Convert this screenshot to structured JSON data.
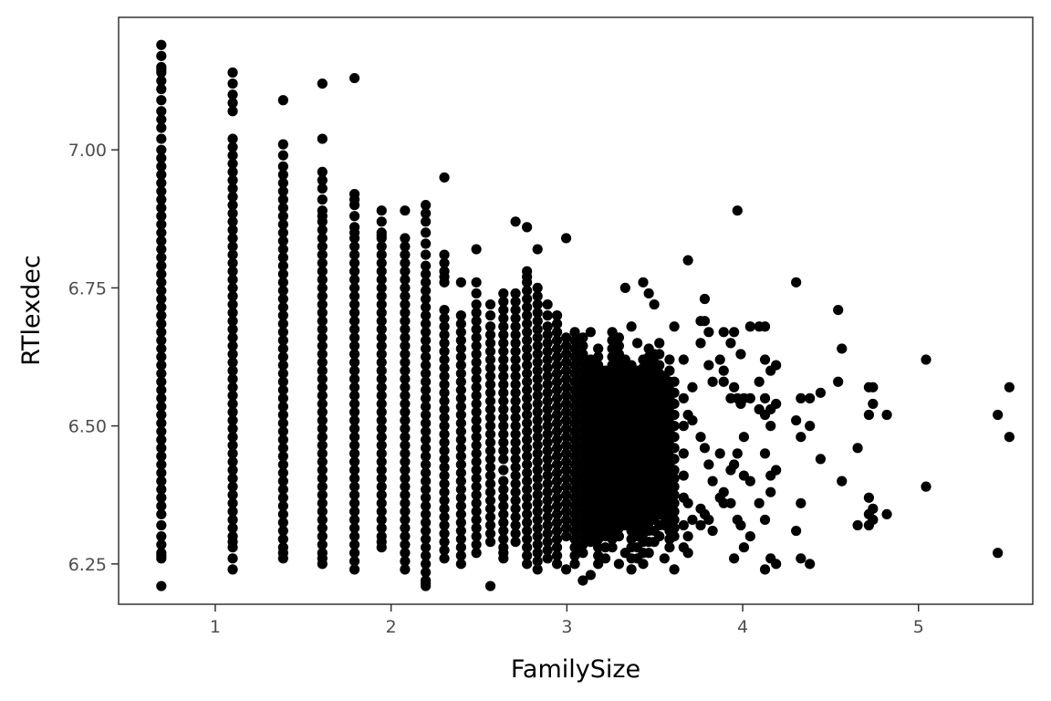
{
  "chart_data": {
    "type": "scatter",
    "title": "",
    "xlabel": "FamilySize",
    "ylabel": "RTlexdec",
    "xlim": [
      0.45,
      5.65
    ],
    "ylim": [
      6.177,
      7.24
    ],
    "x_ticks": [
      1,
      2,
      3,
      4,
      5
    ],
    "x_tick_labels": [
      "1",
      "2",
      "3",
      "4",
      "5"
    ],
    "y_ticks": [
      6.25,
      6.5,
      6.75,
      7.0
    ],
    "y_tick_labels": [
      "6.25",
      "6.50",
      "6.75",
      "7.00"
    ],
    "grid": false,
    "legend": "none",
    "point_color": "#000000",
    "frame_color": "#333333",
    "columns": [
      {
        "x": 0.693,
        "y": [
          6.21,
          6.26,
          6.27,
          6.3,
          6.34,
          6.37,
          6.4,
          6.43,
          6.46,
          6.49,
          6.52,
          6.55,
          6.58,
          6.61,
          6.64,
          6.67,
          6.7,
          6.73,
          6.76,
          6.79,
          6.82,
          6.85,
          6.88,
          6.91,
          6.94,
          6.97,
          7.0,
          7.04,
          7.07,
          7.11,
          7.14,
          7.15,
          7.19
        ]
      },
      {
        "x": 1.099,
        "y": [
          6.24,
          6.28,
          6.3,
          6.33,
          6.36,
          6.39,
          6.42,
          6.45,
          6.48,
          6.51,
          6.54,
          6.57,
          6.6,
          6.63,
          6.66,
          6.69,
          6.72,
          6.75,
          6.78,
          6.81,
          6.84,
          6.87,
          6.9,
          6.93,
          6.96,
          6.99,
          7.02,
          7.07,
          7.1,
          7.14
        ]
      },
      {
        "x": 1.386,
        "y": [
          6.26,
          6.28,
          6.31,
          6.34,
          6.37,
          6.4,
          6.43,
          6.46,
          6.49,
          6.52,
          6.55,
          6.58,
          6.61,
          6.64,
          6.67,
          6.7,
          6.73,
          6.76,
          6.79,
          6.82,
          6.85,
          6.88,
          6.91,
          6.94,
          6.97,
          7.01,
          7.09
        ]
      },
      {
        "x": 1.609,
        "y": [
          6.25,
          6.27,
          6.3,
          6.33,
          6.36,
          6.39,
          6.42,
          6.45,
          6.48,
          6.51,
          6.54,
          6.57,
          6.6,
          6.63,
          6.66,
          6.69,
          6.72,
          6.75,
          6.78,
          6.81,
          6.84,
          6.87,
          6.89,
          6.93,
          6.96,
          7.02,
          7.12
        ]
      },
      {
        "x": 1.792,
        "y": [
          6.24,
          6.27,
          6.3,
          6.33,
          6.36,
          6.39,
          6.42,
          6.45,
          6.48,
          6.51,
          6.54,
          6.57,
          6.6,
          6.63,
          6.66,
          6.69,
          6.72,
          6.75,
          6.78,
          6.81,
          6.84,
          6.86,
          6.9,
          6.92,
          7.13
        ]
      },
      {
        "x": 1.946,
        "y": [
          6.28,
          6.3,
          6.33,
          6.36,
          6.39,
          6.42,
          6.45,
          6.48,
          6.51,
          6.54,
          6.57,
          6.6,
          6.63,
          6.66,
          6.69,
          6.72,
          6.75,
          6.78,
          6.81,
          6.84,
          6.85,
          6.89
        ]
      },
      {
        "x": 2.079,
        "y": [
          6.24,
          6.27,
          6.3,
          6.33,
          6.36,
          6.39,
          6.42,
          6.45,
          6.48,
          6.51,
          6.54,
          6.57,
          6.6,
          6.63,
          6.66,
          6.69,
          6.72,
          6.75,
          6.78,
          6.81,
          6.84,
          6.89
        ]
      },
      {
        "x": 2.197,
        "y": [
          6.21,
          6.22,
          6.25,
          6.28,
          6.31,
          6.34,
          6.37,
          6.4,
          6.43,
          6.46,
          6.49,
          6.52,
          6.55,
          6.58,
          6.61,
          6.64,
          6.67,
          6.7,
          6.73,
          6.76,
          6.79,
          6.83,
          6.87,
          6.9
        ]
      },
      {
        "x": 2.303,
        "y": [
          6.26,
          6.29,
          6.32,
          6.35,
          6.38,
          6.41,
          6.44,
          6.47,
          6.5,
          6.53,
          6.56,
          6.59,
          6.62,
          6.65,
          6.68,
          6.71,
          6.76,
          6.78,
          6.81,
          6.95
        ]
      },
      {
        "x": 2.398,
        "y": [
          6.25,
          6.28,
          6.31,
          6.34,
          6.37,
          6.4,
          6.43,
          6.46,
          6.49,
          6.52,
          6.55,
          6.58,
          6.61,
          6.64,
          6.67,
          6.7,
          6.76
        ]
      },
      {
        "x": 2.485,
        "y": [
          6.27,
          6.3,
          6.33,
          6.36,
          6.39,
          6.42,
          6.45,
          6.48,
          6.51,
          6.54,
          6.57,
          6.6,
          6.63,
          6.66,
          6.69,
          6.72,
          6.76,
          6.82
        ]
      },
      {
        "x": 2.565,
        "y": [
          6.21,
          6.29,
          6.32,
          6.35,
          6.38,
          6.41,
          6.44,
          6.47,
          6.5,
          6.53,
          6.56,
          6.59,
          6.62,
          6.65,
          6.68,
          6.72
        ]
      },
      {
        "x": 2.639,
        "y": [
          6.26,
          6.28,
          6.31,
          6.34,
          6.37,
          6.4,
          6.44,
          6.47,
          6.5,
          6.53,
          6.56,
          6.59,
          6.62,
          6.65,
          6.68,
          6.71,
          6.74
        ]
      },
      {
        "x": 2.708,
        "y": [
          6.29,
          6.32,
          6.35,
          6.38,
          6.41,
          6.44,
          6.47,
          6.5,
          6.53,
          6.56,
          6.59,
          6.62,
          6.65,
          6.68,
          6.71,
          6.74,
          6.87
        ]
      },
      {
        "x": 2.773,
        "y": [
          6.25,
          6.28,
          6.31,
          6.34,
          6.37,
          6.4,
          6.43,
          6.46,
          6.49,
          6.52,
          6.55,
          6.58,
          6.61,
          6.64,
          6.67,
          6.7,
          6.73,
          6.76,
          6.78,
          6.86
        ]
      },
      {
        "x": 2.833,
        "y": [
          6.24,
          6.27,
          6.3,
          6.33,
          6.36,
          6.39,
          6.42,
          6.45,
          6.48,
          6.51,
          6.54,
          6.57,
          6.6,
          6.63,
          6.66,
          6.69,
          6.72,
          6.75,
          6.82
        ]
      },
      {
        "x": 2.89,
        "y": [
          6.26,
          6.29,
          6.32,
          6.35,
          6.38,
          6.41,
          6.44,
          6.47,
          6.5,
          6.53,
          6.56,
          6.59,
          6.62,
          6.65,
          6.68,
          6.72
        ]
      },
      {
        "x": 2.944,
        "y": [
          6.25,
          6.28,
          6.31,
          6.34,
          6.37,
          6.4,
          6.43,
          6.46,
          6.49,
          6.52,
          6.55,
          6.58,
          6.61,
          6.64,
          6.67,
          6.7
        ]
      },
      {
        "x": 2.996,
        "y": [
          6.24,
          6.3,
          6.33,
          6.36,
          6.39,
          6.42,
          6.45,
          6.48,
          6.51,
          6.54,
          6.57,
          6.6,
          6.63,
          6.66,
          6.84
        ]
      },
      {
        "x": 3.045,
        "y": [
          6.25,
          6.28,
          6.31,
          6.34,
          6.37,
          6.4,
          6.43,
          6.46,
          6.49,
          6.52,
          6.55,
          6.58,
          6.61,
          6.64,
          6.67
        ]
      },
      {
        "x": 3.091,
        "y": [
          6.22,
          6.27,
          6.3,
          6.33,
          6.36,
          6.39,
          6.42,
          6.45,
          6.48,
          6.51,
          6.54,
          6.57,
          6.6,
          6.63,
          6.66
        ]
      },
      {
        "x": 3.135,
        "y": [
          6.23,
          6.29,
          6.32,
          6.35,
          6.38,
          6.41,
          6.44,
          6.47,
          6.5,
          6.53,
          6.56,
          6.59,
          6.62,
          6.67
        ]
      },
      {
        "x": 3.178,
        "y": [
          6.25,
          6.28,
          6.31,
          6.34,
          6.37,
          6.4,
          6.43,
          6.46,
          6.49,
          6.52,
          6.55,
          6.58,
          6.61,
          6.64
        ]
      },
      {
        "x": 3.219,
        "y": [
          6.26,
          6.3,
          6.33,
          6.36,
          6.39,
          6.42,
          6.45,
          6.48,
          6.51,
          6.54,
          6.57,
          6.6
        ]
      },
      {
        "x": 3.258,
        "y": [
          6.28,
          6.31,
          6.34,
          6.37,
          6.4,
          6.43,
          6.46,
          6.49,
          6.52,
          6.55,
          6.58,
          6.61,
          6.64,
          6.67
        ]
      },
      {
        "x": 3.296,
        "y": [
          6.25,
          6.3,
          6.33,
          6.36,
          6.39,
          6.42,
          6.45,
          6.48,
          6.51,
          6.54,
          6.57,
          6.6,
          6.63,
          6.66
        ]
      },
      {
        "x": 3.332,
        "y": [
          6.27,
          6.32,
          6.35,
          6.38,
          6.41,
          6.44,
          6.47,
          6.5,
          6.53,
          6.56,
          6.59,
          6.62,
          6.75
        ]
      },
      {
        "x": 3.367,
        "y": [
          6.24,
          6.28,
          6.31,
          6.34,
          6.37,
          6.4,
          6.43,
          6.46,
          6.49,
          6.52,
          6.55,
          6.58,
          6.61,
          6.68
        ]
      },
      {
        "x": 3.401,
        "y": [
          6.26,
          6.3,
          6.33,
          6.36,
          6.39,
          6.42,
          6.45,
          6.48,
          6.51,
          6.54,
          6.57,
          6.6,
          6.65
        ]
      },
      {
        "x": 3.434,
        "y": [
          6.25,
          6.29,
          6.32,
          6.35,
          6.38,
          6.41,
          6.44,
          6.47,
          6.5,
          6.53,
          6.56,
          6.59,
          6.62,
          6.76
        ]
      },
      {
        "x": 3.466,
        "y": [
          6.27,
          6.31,
          6.34,
          6.37,
          6.4,
          6.43,
          6.46,
          6.49,
          6.52,
          6.55,
          6.58,
          6.61,
          6.64,
          6.74
        ]
      },
      {
        "x": 3.497,
        "y": [
          6.29,
          6.33,
          6.36,
          6.39,
          6.42,
          6.45,
          6.48,
          6.51,
          6.54,
          6.57,
          6.6,
          6.63,
          6.72
        ]
      },
      {
        "x": 3.526,
        "y": [
          6.3,
          6.34,
          6.37,
          6.4,
          6.43,
          6.46,
          6.49,
          6.52,
          6.55,
          6.58,
          6.61,
          6.65
        ]
      },
      {
        "x": 3.555,
        "y": [
          6.26,
          6.32,
          6.35,
          6.38,
          6.41,
          6.44,
          6.47,
          6.5,
          6.53,
          6.56,
          6.59
        ]
      },
      {
        "x": 3.584,
        "y": [
          6.28,
          6.31,
          6.34,
          6.37,
          6.4,
          6.43,
          6.46,
          6.49,
          6.52,
          6.55,
          6.58,
          6.62
        ]
      },
      {
        "x": 3.611,
        "y": [
          6.24,
          6.3,
          6.33,
          6.36,
          6.39,
          6.42,
          6.46,
          6.5,
          6.54,
          6.58,
          6.68
        ]
      },
      {
        "x": 3.664,
        "y": [
          6.28,
          6.32,
          6.37,
          6.41,
          6.45,
          6.5,
          6.55,
          6.62
        ]
      },
      {
        "x": 3.689,
        "y": [
          6.27,
          6.3,
          6.36,
          6.52,
          6.8
        ]
      },
      {
        "x": 3.714,
        "y": [
          6.33,
          6.51,
          6.57
        ]
      },
      {
        "x": 3.761,
        "y": [
          6.32,
          6.35,
          6.48,
          6.65,
          6.69
        ]
      },
      {
        "x": 3.784,
        "y": [
          6.34,
          6.46,
          6.69,
          6.73
        ]
      },
      {
        "x": 3.807,
        "y": [
          6.33,
          6.43,
          6.61,
          6.67
        ]
      },
      {
        "x": 3.829,
        "y": [
          6.31,
          6.4,
          6.58
        ]
      },
      {
        "x": 3.871,
        "y": [
          6.37,
          6.45,
          6.62
        ]
      },
      {
        "x": 3.892,
        "y": [
          6.38,
          6.36,
          6.58,
          6.6,
          6.67
        ]
      },
      {
        "x": 3.932,
        "y": [
          6.36,
          6.42,
          6.55,
          6.65
        ]
      },
      {
        "x": 3.951,
        "y": [
          6.26,
          6.43,
          6.57,
          6.67
        ]
      },
      {
        "x": 3.97,
        "y": [
          6.33,
          6.45,
          6.55,
          6.89
        ]
      },
      {
        "x": 3.989,
        "y": [
          6.32,
          6.54,
          6.63
        ]
      },
      {
        "x": 4.007,
        "y": [
          6.28,
          6.41,
          6.48,
          6.55
        ]
      },
      {
        "x": 4.043,
        "y": [
          6.3,
          6.4,
          6.55,
          6.68
        ]
      },
      {
        "x": 4.094,
        "y": [
          6.36,
          6.53,
          6.58,
          6.68
        ]
      },
      {
        "x": 4.127,
        "y": [
          6.24,
          6.33,
          6.45,
          6.52,
          6.55,
          6.62,
          6.68
        ]
      },
      {
        "x": 4.159,
        "y": [
          6.26,
          6.38,
          6.41,
          6.5,
          6.53,
          6.6
        ]
      },
      {
        "x": 4.19,
        "y": [
          6.25,
          6.42,
          6.54,
          6.61
        ]
      },
      {
        "x": 4.304,
        "y": [
          6.31,
          6.51,
          6.76
        ]
      },
      {
        "x": 4.331,
        "y": [
          6.36,
          6.26,
          6.48,
          6.55
        ]
      },
      {
        "x": 4.382,
        "y": [
          6.25,
          6.5,
          6.55
        ]
      },
      {
        "x": 4.443,
        "y": [
          6.44,
          6.56
        ]
      },
      {
        "x": 4.543,
        "y": [
          6.58,
          6.71
        ]
      },
      {
        "x": 4.564,
        "y": [
          6.4,
          6.64
        ]
      },
      {
        "x": 4.654,
        "y": [
          6.32,
          6.46
        ]
      },
      {
        "x": 4.718,
        "y": [
          6.32,
          6.34,
          6.37,
          6.52,
          6.57
        ]
      },
      {
        "x": 4.741,
        "y": [
          6.33,
          6.35,
          6.54,
          6.57
        ]
      },
      {
        "x": 4.82,
        "y": [
          6.34,
          6.52
        ]
      },
      {
        "x": 5.043,
        "y": [
          6.39,
          6.62
        ]
      },
      {
        "x": 5.451,
        "y": [
          6.27,
          6.52
        ]
      },
      {
        "x": 5.517,
        "y": [
          6.48,
          6.57
        ]
      }
    ]
  }
}
